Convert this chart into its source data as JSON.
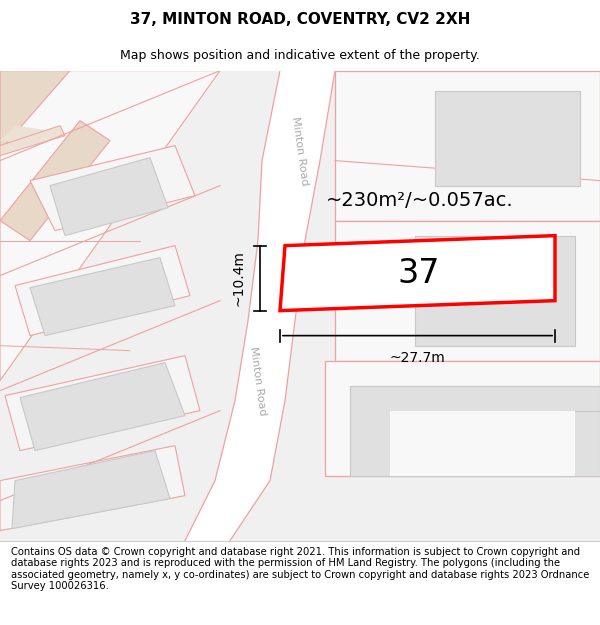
{
  "title": "37, MINTON ROAD, COVENTRY, CV2 2XH",
  "subtitle": "Map shows position and indicative extent of the property.",
  "footer": "Contains OS data © Crown copyright and database right 2021. This information is subject to Crown copyright and database rights 2023 and is reproduced with the permission of HM Land Registry. The polygons (including the associated geometry, namely x, y co-ordinates) are subject to Crown copyright and database rights 2023 Ordnance Survey 100026316.",
  "area_label": "~230m²/~0.057ac.",
  "width_label": "~27.7m",
  "height_label": "~10.4m",
  "road_label": "Minton Road",
  "road_label2": "Minton Road",
  "bg_color": "#ffffff",
  "map_bg": "#f0f0f0",
  "building_fill": "#e0e0e0",
  "building_edge": "#c8c8c8",
  "pink_line": "#f0a0a0",
  "highlight_fill": "#ffffff",
  "highlight_edge": "#ff0000",
  "road_fill": "#ffffff",
  "number_label": "37",
  "title_fontsize": 11,
  "subtitle_fontsize": 9,
  "footer_fontsize": 7.2,
  "label_fontsize": 14,
  "number_fontsize": 24
}
